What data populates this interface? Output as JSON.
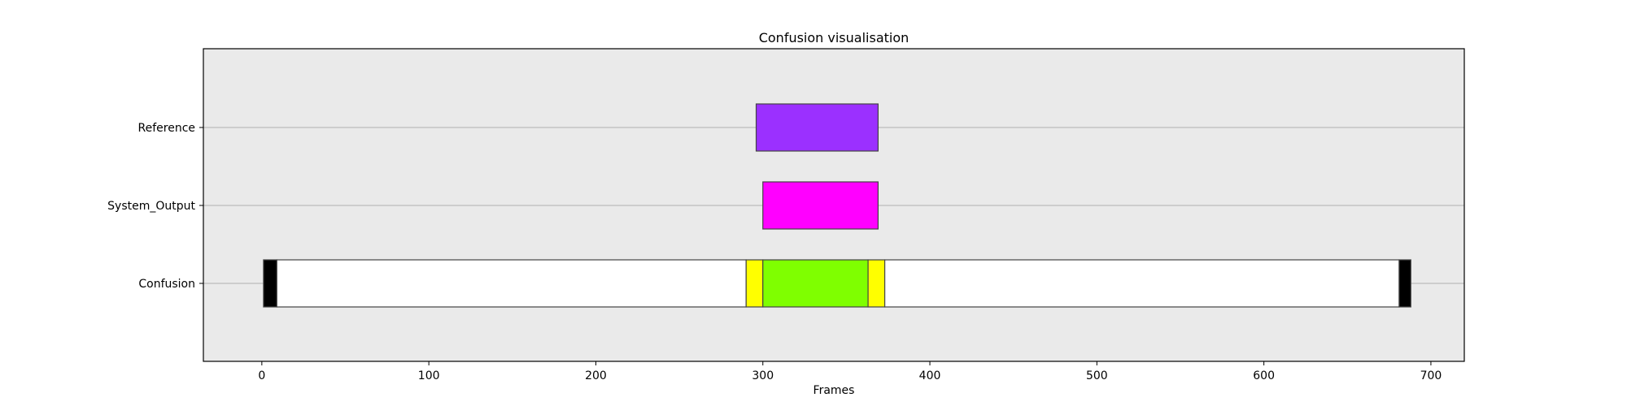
{
  "chart_data": {
    "type": "broken_barh",
    "title": "Confusion visualisation",
    "xlabel": "Frames",
    "ylabel": "",
    "xlim": [
      -35,
      720
    ],
    "xticks": [
      0,
      100,
      200,
      300,
      400,
      500,
      600,
      700
    ],
    "grid": "horizontal",
    "background": "#eaeaea",
    "rows": [
      {
        "label": "Reference",
        "segments": [
          {
            "start": 296,
            "end": 369,
            "color": "#9b30ff"
          }
        ]
      },
      {
        "label": "System_Output",
        "segments": [
          {
            "start": 300,
            "end": 369,
            "color": "#ff00ff"
          }
        ]
      },
      {
        "label": "Confusion",
        "segments": [
          {
            "start": 1,
            "end": 9,
            "color": "#000000"
          },
          {
            "start": 9,
            "end": 290,
            "color": "#ffffff"
          },
          {
            "start": 290,
            "end": 300,
            "color": "#ffff00"
          },
          {
            "start": 300,
            "end": 363,
            "color": "#7fff00"
          },
          {
            "start": 363,
            "end": 373,
            "color": "#ffff00"
          },
          {
            "start": 373,
            "end": 681,
            "color": "#ffffff"
          },
          {
            "start": 681,
            "end": 688,
            "color": "#000000"
          }
        ]
      }
    ]
  }
}
